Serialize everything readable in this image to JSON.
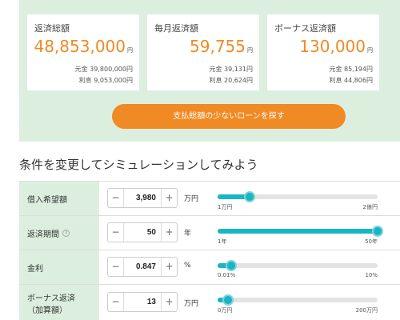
{
  "summary": {
    "cards": [
      {
        "title": "返済総額",
        "amount": "48,853,000",
        "unit": "円",
        "line1": "元金 39,800,000円",
        "line2": "利息 9,053,000円"
      },
      {
        "title": "毎月返済額",
        "amount": "59,755",
        "unit": "円",
        "line1": "元金 39,131円",
        "line2": "利息 20,624円"
      },
      {
        "title": "ボーナス返済額",
        "amount": "130,000",
        "unit": "円",
        "line1": "元金 85,194円",
        "line2": "利息 44,806円"
      }
    ],
    "search_button": "支払総額の少ないローンを探す"
  },
  "simulation": {
    "heading": "条件を変更してシミュレーションしてみよう",
    "rows": [
      {
        "label": "借入希望額",
        "label2": "",
        "help": false,
        "value": "3,980",
        "unit": "万円",
        "min_label": "1万円",
        "max_label": "2億円",
        "level": 0.2
      },
      {
        "label": "返済期間",
        "label2": "",
        "help": true,
        "value": "50",
        "unit": "年",
        "min_label": "1年",
        "max_label": "50年",
        "level": 1.0
      },
      {
        "label": "金利",
        "label2": "",
        "help": false,
        "value": "0.847",
        "unit": "%",
        "min_label": "0.01%",
        "max_label": "10%",
        "level": 0.085
      },
      {
        "label": "ボーナス返済",
        "label2": "（加算額）",
        "help": false,
        "value": "13",
        "unit": "万円",
        "min_label": "0万円",
        "max_label": "200万円",
        "level": 0.065
      }
    ],
    "minus": "−",
    "plus": "+",
    "help_glyph": "?"
  },
  "colors": {
    "accent": "#f08a24",
    "slider": "#19b5c4",
    "panel": "#dcefdf"
  }
}
